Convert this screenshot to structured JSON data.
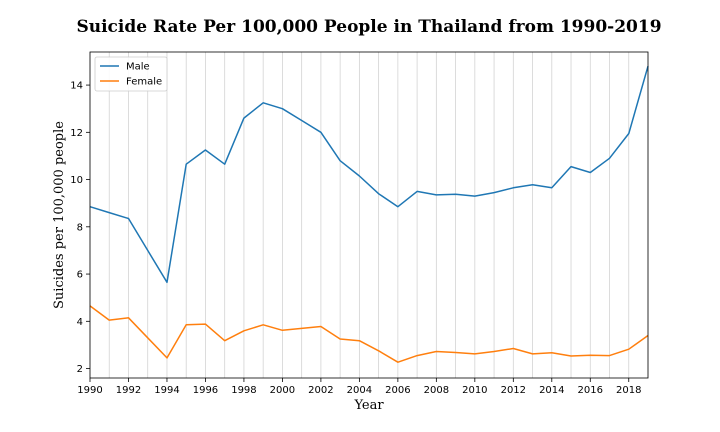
{
  "chart_data": {
    "type": "line",
    "title": "Suicide Rate Per 100,000 People in Thailand from 1990-2019",
    "xlabel": "Year",
    "ylabel": "Suicides per 100,000 people",
    "xlim": [
      1990,
      2019
    ],
    "ylim": [
      1.6,
      15.4
    ],
    "x": [
      1990,
      1991,
      1992,
      1993,
      1994,
      1995,
      1996,
      1997,
      1998,
      1999,
      2000,
      2001,
      2002,
      2003,
      2004,
      2005,
      2006,
      2007,
      2008,
      2009,
      2010,
      2011,
      2012,
      2013,
      2014,
      2015,
      2016,
      2017,
      2018,
      2019
    ],
    "x_ticks": [
      1990,
      1992,
      1994,
      1996,
      1998,
      2000,
      2002,
      2004,
      2006,
      2008,
      2010,
      2012,
      2014,
      2016,
      2018
    ],
    "y_ticks": [
      2,
      4,
      6,
      8,
      10,
      12,
      14
    ],
    "x_ticks_text": [
      "1990",
      "1992",
      "1994",
      "1996",
      "1998",
      "2000",
      "2002",
      "2004",
      "2006",
      "2008",
      "2010",
      "2012",
      "2014",
      "2016",
      "2018"
    ],
    "y_ticks_text": [
      "2",
      "4",
      "6",
      "8",
      "10",
      "12",
      "14"
    ],
    "grid": "vertical",
    "legend_position": "top-left",
    "series": [
      {
        "name": "Male",
        "color": "#1f77b4",
        "values": [
          8.85,
          8.6,
          8.35,
          7.0,
          5.65,
          10.65,
          11.25,
          10.65,
          12.6,
          13.25,
          13.0,
          12.5,
          12.0,
          10.8,
          10.15,
          9.4,
          8.85,
          9.5,
          9.35,
          9.38,
          9.3,
          9.45,
          9.65,
          9.78,
          9.65,
          10.55,
          10.3,
          10.9,
          11.95,
          14.8
        ]
      },
      {
        "name": "Female",
        "color": "#ff7f0e",
        "values": [
          4.65,
          4.05,
          4.15,
          3.3,
          2.45,
          3.85,
          3.88,
          3.18,
          3.6,
          3.85,
          3.62,
          3.7,
          3.78,
          3.25,
          3.18,
          2.75,
          2.27,
          2.55,
          2.72,
          2.68,
          2.62,
          2.72,
          2.85,
          2.62,
          2.67,
          2.53,
          2.56,
          2.55,
          2.82,
          3.4
        ]
      }
    ]
  }
}
